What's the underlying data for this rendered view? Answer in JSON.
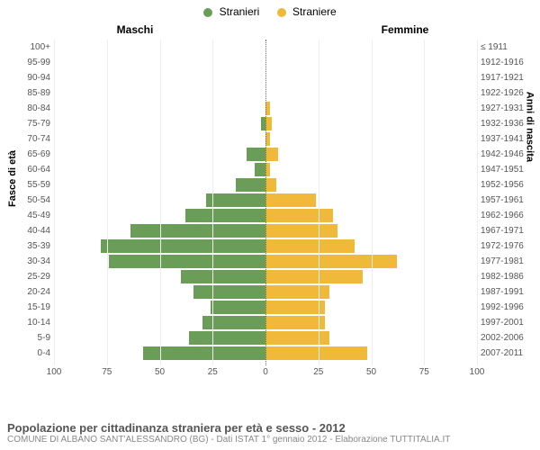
{
  "chart": {
    "type": "population-pyramid",
    "legend": {
      "male": {
        "label": "Stranieri",
        "color": "#6a9e58"
      },
      "female": {
        "label": "Straniere",
        "color": "#f0b93a"
      }
    },
    "column_headers": {
      "left": "Maschi",
      "right": "Femmine"
    },
    "y_left_title": "Fasce di età",
    "y_right_title": "Anni di nascita",
    "x_axis": {
      "max": 100,
      "ticks": [
        100,
        75,
        50,
        25,
        0,
        25,
        50,
        75,
        100
      ],
      "grid_color": "#eeeeee"
    },
    "bar_colors": {
      "male": "#6a9e58",
      "female": "#f0b93a"
    },
    "background_color": "#ffffff",
    "rows": [
      {
        "age": "100+",
        "year": "≤ 1911",
        "male": 0,
        "female": 0
      },
      {
        "age": "95-99",
        "year": "1912-1916",
        "male": 0,
        "female": 0
      },
      {
        "age": "90-94",
        "year": "1917-1921",
        "male": 0,
        "female": 0
      },
      {
        "age": "85-89",
        "year": "1922-1926",
        "male": 0,
        "female": 0
      },
      {
        "age": "80-84",
        "year": "1927-1931",
        "male": 0,
        "female": 2
      },
      {
        "age": "75-79",
        "year": "1932-1936",
        "male": 2,
        "female": 3
      },
      {
        "age": "70-74",
        "year": "1937-1941",
        "male": 0,
        "female": 2
      },
      {
        "age": "65-69",
        "year": "1942-1946",
        "male": 9,
        "female": 6
      },
      {
        "age": "60-64",
        "year": "1947-1951",
        "male": 5,
        "female": 2
      },
      {
        "age": "55-59",
        "year": "1952-1956",
        "male": 14,
        "female": 5
      },
      {
        "age": "50-54",
        "year": "1957-1961",
        "male": 28,
        "female": 24
      },
      {
        "age": "45-49",
        "year": "1962-1966",
        "male": 38,
        "female": 32
      },
      {
        "age": "40-44",
        "year": "1967-1971",
        "male": 64,
        "female": 34
      },
      {
        "age": "35-39",
        "year": "1972-1976",
        "male": 78,
        "female": 42
      },
      {
        "age": "30-34",
        "year": "1977-1981",
        "male": 74,
        "female": 62
      },
      {
        "age": "25-29",
        "year": "1982-1986",
        "male": 40,
        "female": 46
      },
      {
        "age": "20-24",
        "year": "1987-1991",
        "male": 34,
        "female": 30
      },
      {
        "age": "15-19",
        "year": "1992-1996",
        "male": 26,
        "female": 28
      },
      {
        "age": "10-14",
        "year": "1997-2001",
        "male": 30,
        "female": 28
      },
      {
        "age": "5-9",
        "year": "2002-2006",
        "male": 36,
        "female": 30
      },
      {
        "age": "0-4",
        "year": "2007-2011",
        "male": 58,
        "female": 48
      }
    ]
  },
  "footer": {
    "title": "Popolazione per cittadinanza straniera per età e sesso - 2012",
    "subtitle": "COMUNE DI ALBANO SANT'ALESSANDRO (BG) - Dati ISTAT 1° gennaio 2012 - Elaborazione TUTTITALIA.IT"
  }
}
